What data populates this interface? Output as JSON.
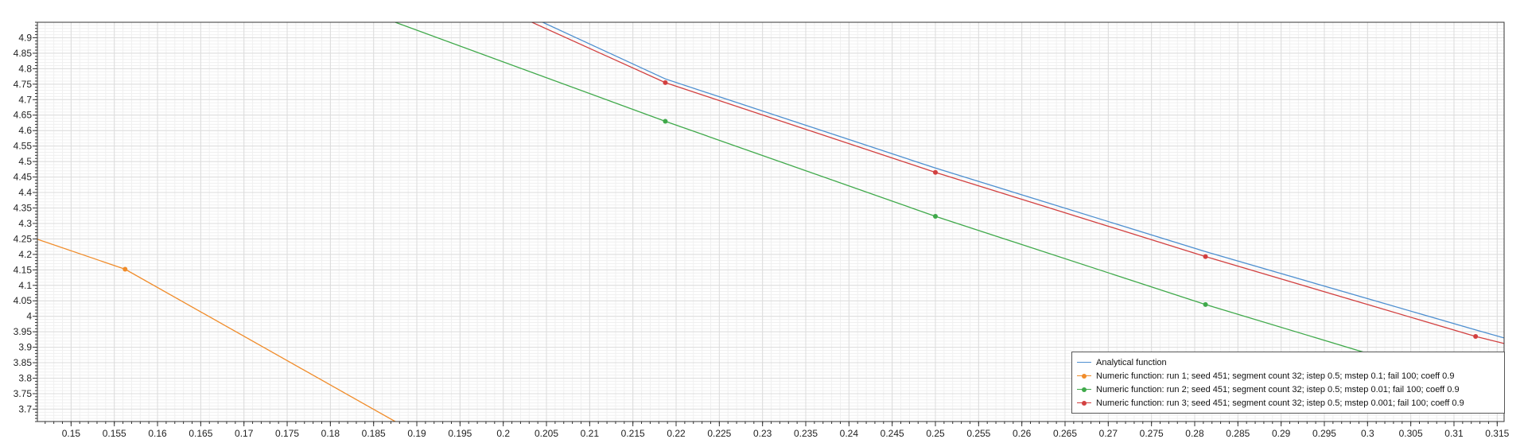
{
  "chart_data": {
    "type": "line",
    "title": "",
    "xlabel": "",
    "ylabel": "",
    "xlim": [
      0.1461,
      0.3158
    ],
    "ylim": [
      3.66,
      4.95
    ],
    "grid": true,
    "legend_position": "bottom-right",
    "x_ticks": [
      0.15,
      0.155,
      0.16,
      0.165,
      0.17,
      0.175,
      0.18,
      0.185,
      0.19,
      0.195,
      0.2,
      0.205,
      0.21,
      0.215,
      0.22,
      0.225,
      0.23,
      0.235,
      0.24,
      0.245,
      0.25,
      0.255,
      0.26,
      0.265,
      0.27,
      0.275,
      0.28,
      0.285,
      0.29,
      0.295,
      0.3,
      0.305,
      0.31,
      0.315
    ],
    "x_tick_labels": [
      "0.15",
      "0.155",
      "0.16",
      "0.165",
      "0.17",
      "0.175",
      "0.18",
      "0.185",
      "0.19",
      "0.195",
      "0.2",
      "0.205",
      "0.21",
      "0.215",
      "0.22",
      "0.225",
      "0.23",
      "0.235",
      "0.24",
      "0.245",
      "0.25",
      "0.255",
      "0.26",
      "0.265",
      "0.27",
      "0.275",
      "0.28",
      "0.285",
      "0.29",
      "0.295",
      "0.3",
      "0.305",
      "0.31",
      "0.315"
    ],
    "y_ticks": [
      3.7,
      3.75,
      3.8,
      3.85,
      3.9,
      3.95,
      4.0,
      4.05,
      4.1,
      4.15,
      4.2,
      4.25,
      4.3,
      4.35,
      4.4,
      4.45,
      4.5,
      4.55,
      4.6,
      4.65,
      4.7,
      4.75,
      4.8,
      4.85,
      4.9
    ],
    "y_tick_labels": [
      "3.7",
      "3.75",
      "3.8",
      "3.85",
      "3.9",
      "3.95",
      "4",
      "4.05",
      "4.1",
      "4.15",
      "4.2",
      "4.25",
      "4.3",
      "4.35",
      "4.4",
      "4.45",
      "4.5",
      "4.55",
      "4.6",
      "4.65",
      "4.7",
      "4.75",
      "4.8",
      "4.85",
      "4.9"
    ],
    "series": [
      {
        "name": "Analytical function",
        "color": "#4e8fd0",
        "markers": false,
        "x": [
          0.1875,
          0.21875,
          0.25,
          0.28125,
          0.3125,
          0.3158
        ],
        "y": [
          5.17,
          4.767,
          4.479,
          4.209,
          3.956,
          3.93
        ]
      },
      {
        "name": "Numeric function: run 1; seed 451; segment count 32; istep 0.5; mstep 0.1; fail 100; coeff 0.9",
        "color": "#f08c2a",
        "markers": true,
        "x": [
          0.125,
          0.15625,
          0.1875
        ],
        "y": [
          4.45,
          4.152,
          3.66
        ]
      },
      {
        "name": "Numeric function: run 2; seed 451; segment count 32; istep 0.5; mstep 0.01; fail 100; coeff 0.9",
        "color": "#3fa94a",
        "markers": true,
        "x": [
          0.1875,
          0.21875,
          0.25,
          0.28125,
          0.3125,
          0.3158
        ],
        "y": [
          4.95,
          4.63,
          4.323,
          4.038,
          3.775,
          3.745
        ]
      },
      {
        "name": "Numeric function: run 3; seed 451; segment count 32; istep 0.5; mstep 0.001; fail 100; coeff 0.9",
        "color": "#d24040",
        "markers": true,
        "x": [
          0.1875,
          0.21875,
          0.25,
          0.28125,
          0.3125,
          0.3158
        ],
        "y": [
          5.15,
          4.755,
          4.465,
          4.193,
          3.935,
          3.912
        ]
      }
    ]
  }
}
